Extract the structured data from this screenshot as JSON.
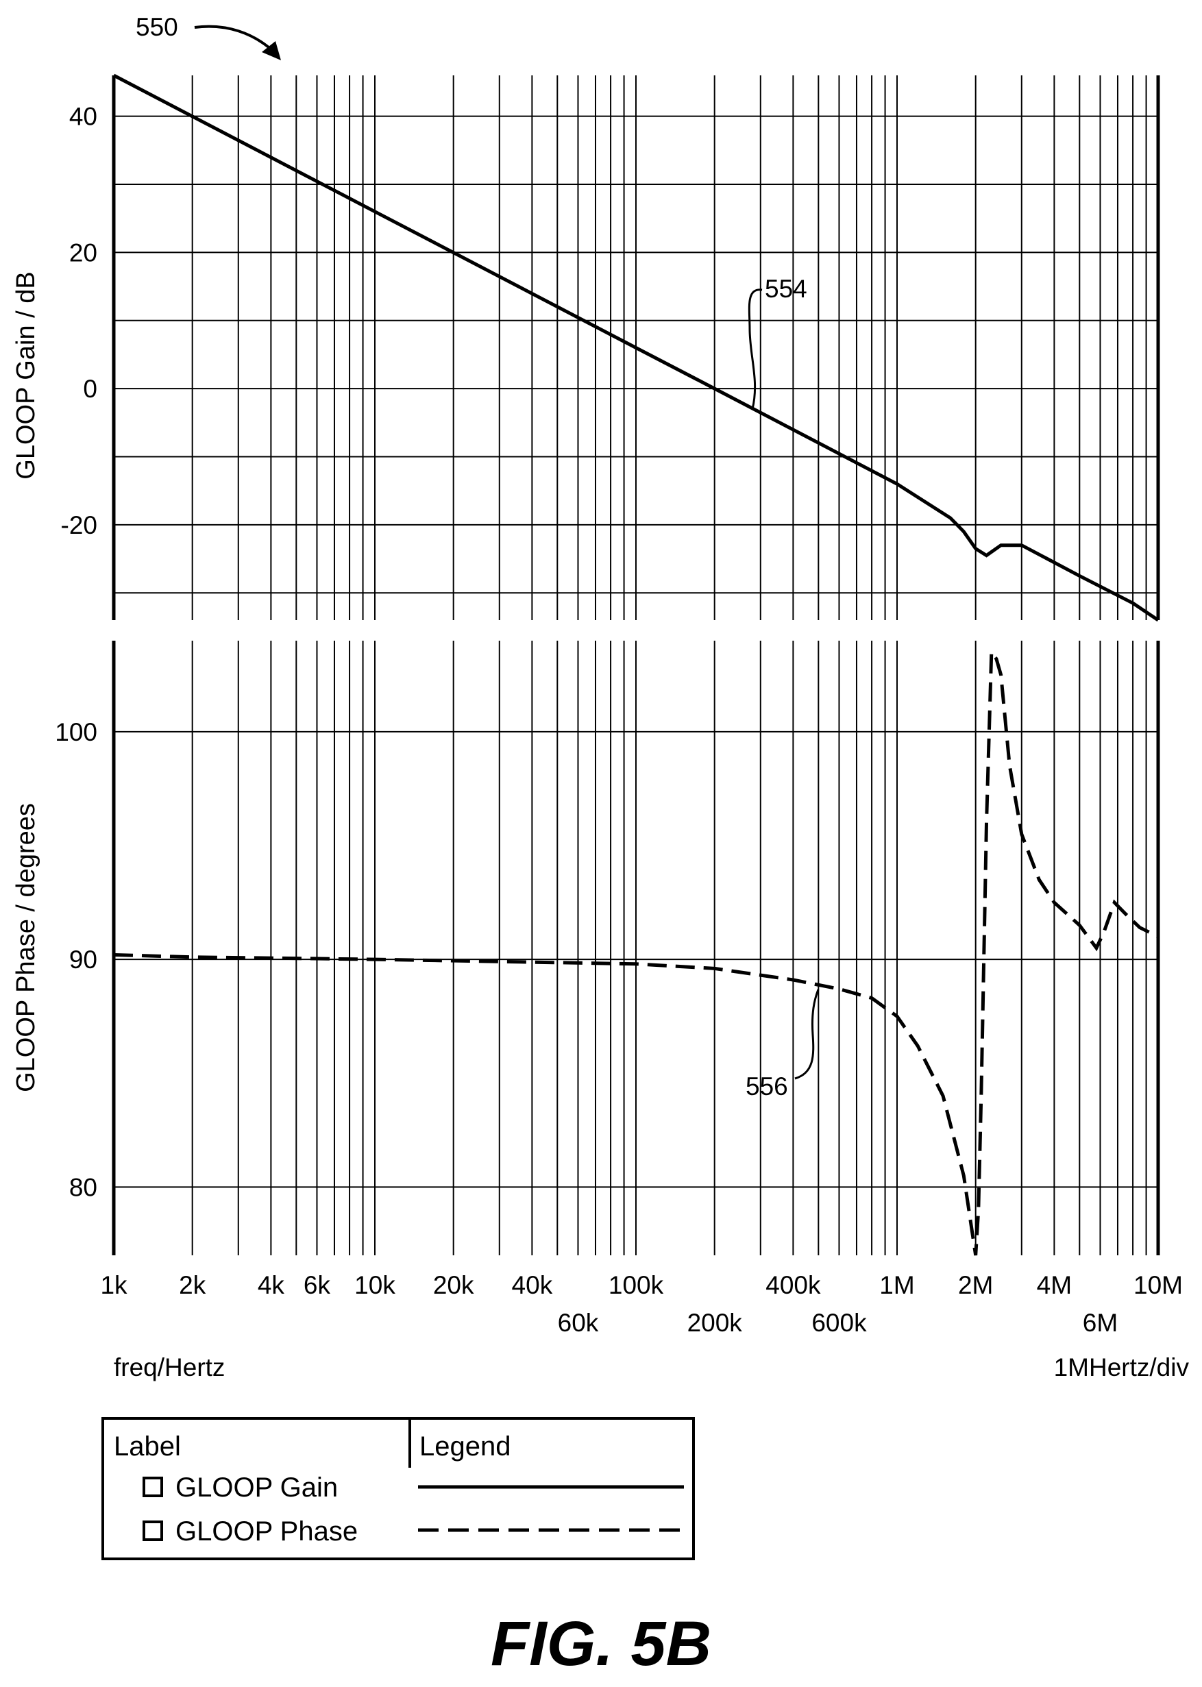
{
  "figure": {
    "caption": "FIG. 5B",
    "ref_figure": "550",
    "ref_gain_curve": "554",
    "ref_phase_curve": "556"
  },
  "x_axis": {
    "label": "freq/Hertz",
    "scale_note": "1MHertz/div",
    "scale": "log",
    "range": [
      1000,
      10000000
    ],
    "ticks_top_row": [
      {
        "value": 1000,
        "label": "1k"
      },
      {
        "value": 2000,
        "label": "2k"
      },
      {
        "value": 4000,
        "label": "4k"
      },
      {
        "value": 6000,
        "label": "6k"
      },
      {
        "value": 10000,
        "label": "10k"
      },
      {
        "value": 20000,
        "label": "20k"
      },
      {
        "value": 40000,
        "label": "40k"
      },
      {
        "value": 100000,
        "label": "100k"
      },
      {
        "value": 400000,
        "label": "400k"
      },
      {
        "value": 1000000,
        "label": "1M"
      },
      {
        "value": 2000000,
        "label": "2M"
      },
      {
        "value": 4000000,
        "label": "4M"
      },
      {
        "value": 10000000,
        "label": "10M"
      }
    ],
    "ticks_bottom_row": [
      {
        "value": 60000,
        "label": "60k"
      },
      {
        "value": 200000,
        "label": "200k"
      },
      {
        "value": 600000,
        "label": "600k"
      },
      {
        "value": 6000000,
        "label": "6M"
      }
    ],
    "gridlines": [
      1000,
      2000,
      3000,
      4000,
      5000,
      6000,
      7000,
      8000,
      9000,
      10000,
      20000,
      30000,
      40000,
      50000,
      60000,
      70000,
      80000,
      90000,
      100000,
      200000,
      300000,
      400000,
      500000,
      600000,
      700000,
      800000,
      900000,
      1000000,
      2000000,
      3000000,
      4000000,
      5000000,
      6000000,
      7000000,
      8000000,
      9000000,
      10000000
    ]
  },
  "legend": {
    "header_label": "Label",
    "header_legend": "Legend",
    "entries": [
      {
        "name": "GLOOP Gain",
        "style": "solid"
      },
      {
        "name": "GLOOP Phase",
        "style": "dashed"
      }
    ]
  },
  "chart_data": [
    {
      "type": "line",
      "ylabel": "GLOOP Gain / dB",
      "xscale": "log",
      "ylim": [
        -34,
        46
      ],
      "yticks": [
        40,
        20,
        0,
        -20
      ],
      "ygrid": [
        40,
        30,
        20,
        10,
        0,
        -10,
        -20,
        -30
      ],
      "grid": true,
      "series": [
        {
          "name": "GLOOP Gain",
          "style": "solid",
          "x": [
            1000,
            10000,
            100000,
            200000,
            1000000,
            1600000,
            1800000,
            2000000,
            2200000,
            2500000,
            3000000,
            5000000,
            8000000,
            10000000
          ],
          "y": [
            46,
            26,
            6,
            0,
            -14,
            -19,
            -21,
            -23.5,
            -24.5,
            -23,
            -23,
            -27.5,
            -31.5,
            -34
          ]
        }
      ]
    },
    {
      "type": "line",
      "ylabel": "GLOOP Phase / degrees",
      "xscale": "log",
      "ylim": [
        77,
        104
      ],
      "yticks": [
        100,
        90,
        80
      ],
      "ygrid": [
        100,
        90,
        80
      ],
      "grid": true,
      "series": [
        {
          "name": "GLOOP Phase",
          "style": "dashed",
          "x": [
            1000,
            2000,
            10000,
            100000,
            200000,
            400000,
            600000,
            800000,
            1000000,
            1200000,
            1500000,
            1800000,
            2000000,
            2050000,
            2100000,
            2200000,
            2300000,
            2400000,
            2500000,
            2700000,
            3000000,
            3500000,
            4000000,
            5000000,
            5800000,
            6200000,
            6800000,
            7500000,
            8500000,
            10000000
          ],
          "y": [
            90.2,
            90.1,
            90.0,
            89.8,
            89.6,
            89.1,
            88.7,
            88.3,
            87.5,
            86.2,
            84.0,
            80.5,
            77.0,
            79.0,
            84.0,
            96.0,
            103.5,
            103.2,
            102.5,
            98.5,
            95.5,
            93.5,
            92.5,
            91.5,
            90.5,
            91.2,
            92.5,
            92.0,
            91.4,
            91.0
          ]
        }
      ]
    }
  ]
}
